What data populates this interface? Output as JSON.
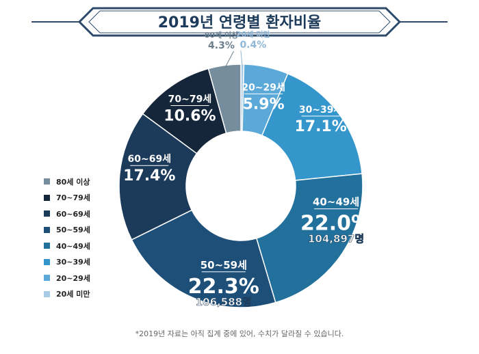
{
  "title": "2019년 연령별 환자비율",
  "footnote": "*2019년 자료는 아직 집계 중에 있어, 수치가 달라질 수 있습니다.",
  "colors": {
    "navy_dark": "#1c3a59",
    "banner_line": "#2d4a6b"
  },
  "chart_data": {
    "type": "pie",
    "donut": true,
    "title": "2019년 연령별 환자비율",
    "slices": [
      {
        "label": "20세 미만",
        "pct_text": "0.4%",
        "value": 0.4,
        "color": "#a7cbe4",
        "count": ""
      },
      {
        "label": "20~29세",
        "pct_text": "5.9%",
        "value": 5.9,
        "color": "#5aa9d8",
        "count": ""
      },
      {
        "label": "30~39세",
        "pct_text": "17.1%",
        "value": 17.1,
        "color": "#3596cc",
        "count": ""
      },
      {
        "label": "40~49세",
        "pct_text": "22.0%",
        "value": 22.0,
        "color": "#22709c",
        "count": "104,897명"
      },
      {
        "label": "50~59세",
        "pct_text": "22.3%",
        "value": 22.3,
        "color": "#1e4f78",
        "count": "106,588명"
      },
      {
        "label": "60~69세",
        "pct_text": "17.4%",
        "value": 17.4,
        "color": "#1c3a59",
        "count": ""
      },
      {
        "label": "70~79세",
        "pct_text": "10.6%",
        "value": 10.6,
        "color": "#15263a",
        "count": ""
      },
      {
        "label": "80세 이상",
        "pct_text": "4.3%",
        "value": 4.3,
        "color": "#768d9e",
        "count": ""
      }
    ],
    "legend": [
      {
        "label": "80세 이상",
        "color": "#768d9e"
      },
      {
        "label": "70~79세",
        "color": "#15263a"
      },
      {
        "label": "60~69세",
        "color": "#1c3a59"
      },
      {
        "label": "50~59세",
        "color": "#1e4f78"
      },
      {
        "label": "40~49세",
        "color": "#22709c"
      },
      {
        "label": "30~39세",
        "color": "#3596cc"
      },
      {
        "label": "20~29세",
        "color": "#5aa9d8"
      },
      {
        "label": "20세 미만",
        "color": "#a7cbe4"
      }
    ],
    "legend_position": "left"
  }
}
